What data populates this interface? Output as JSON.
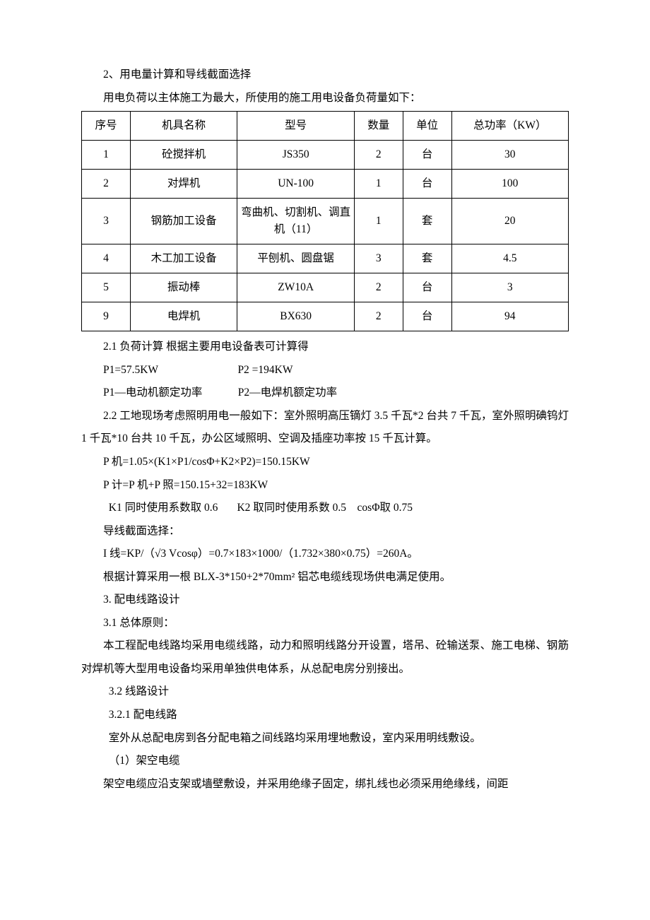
{
  "section2": {
    "title": "2、用电量计算和导线截面选择",
    "intro": "用电负荷以主体施工为最大，所使用的施工用电设备负荷量如下："
  },
  "table": {
    "headers": [
      "序号",
      "机具名称",
      "型号",
      "数量",
      "单位",
      "总功率（KW）"
    ],
    "rows": [
      [
        "1",
        "砼搅拌机",
        "JS350",
        "2",
        "台",
        "30"
      ],
      [
        "2",
        "对焊机",
        "UN-100",
        "1",
        "台",
        "100"
      ],
      [
        "3",
        "钢筋加工设备",
        "弯曲机、切割机、调直机（11）",
        "1",
        "套",
        "20"
      ],
      [
        "4",
        "木工加工设备",
        "平刨机、圆盘锯",
        "3",
        "套",
        "4.5"
      ],
      [
        "5",
        "振动棒",
        "ZW10A",
        "2",
        "台",
        "3"
      ],
      [
        "9",
        "电焊机",
        "BX630",
        "2",
        "台",
        "94"
      ]
    ]
  },
  "calc": {
    "h21": "2.1 负荷计算 根据主要用电设备表可计算得",
    "p1": "P1=57.5KW",
    "p2": "P2 =194KW",
    "p1d": "P1—电动机额定功率",
    "p2d": "P2—电焊机额定功率",
    "h22": "2.2 工地现场考虑照明用电一般如下：室外照明高压镝灯 3.5 千瓦*2 台共 7 千瓦，室外照明碘钨灯 1 千瓦*10 台共 10 千瓦，办公区域照明、空调及插座功率按 15 千瓦计算。",
    "pmachine": "P 机=1.05×(K1×P1/cosΦ+K2×P2)=150.15KW",
    "ptotal": "P 计=P 机+P 照=150.15+32=183KW",
    "k1": "K1 同时使用系数取 0.6",
    "k2": "K2 取同时使用系数 0.5",
    "cos": "cosΦ取 0.75",
    "wiresel": "导线截面选择：",
    "iline": "I 线=KP/（√3 Vcosφ）=0.7×183×1000/（1.732×380×0.75）=260A。",
    "cable": "根据计算采用一根 BLX-3*150+2*70mm² 铝芯电缆线现场供电满足使用。"
  },
  "section3": {
    "h3": "3. 配电线路设计",
    "h31": "3.1 总体原则：",
    "p31": "本工程配电线路均采用电缆线路，动力和照明线路分开设置，塔吊、砼输送泵、施工电梯、钢筋对焊机等大型用电设备均采用单独供电体系，从总配电房分别接出。",
    "h32": "3.2 线路设计",
    "h321": "3.2.1 配电线路",
    "p321": "室外从总配电房到各分配电箱之间线路均采用埋地敷设，室内采用明线敷设。",
    "item1": "（1）架空电缆",
    "p1text": "架空电缆应沿支架或墙壁敷设，并采用绝缘子固定，绑扎线也必须采用绝缘线，间距"
  }
}
